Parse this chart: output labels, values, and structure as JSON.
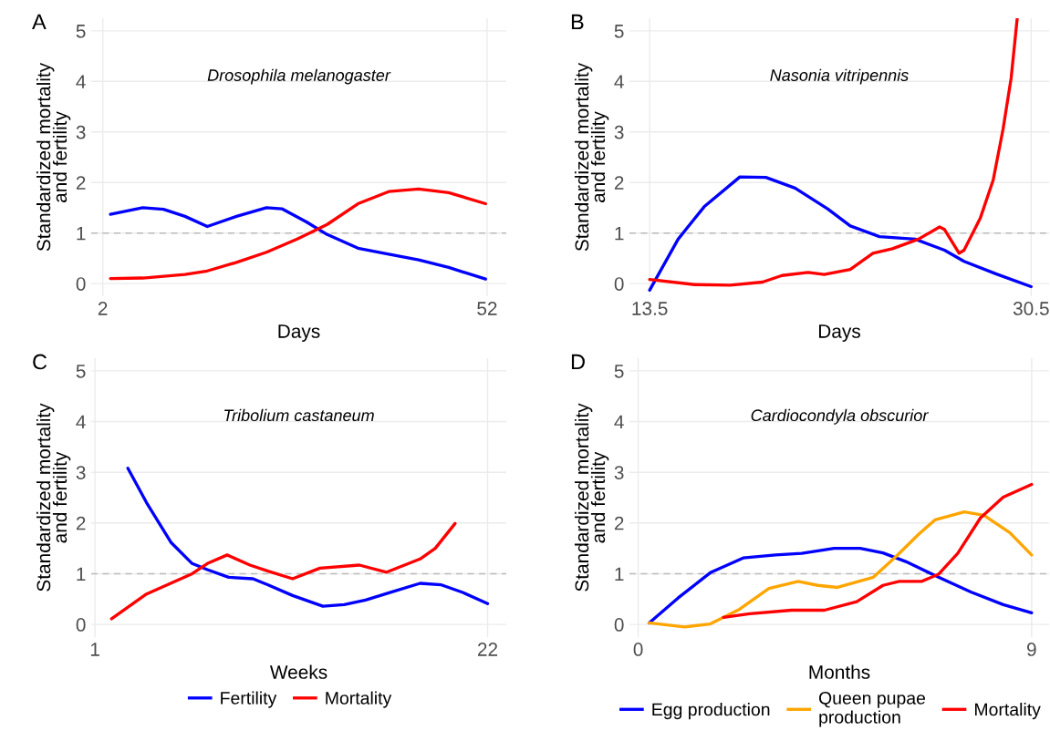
{
  "chart_data": [
    {
      "type": "line",
      "title": "A",
      "subtitle": "Drosophila melanogaster",
      "xlabel": "Days",
      "ylabel": "Standardized mortality\nand fertility",
      "xlim": [
        0.5,
        54.5
      ],
      "xticks": [
        2,
        52
      ],
      "ylim": [
        -0.25,
        5.25
      ],
      "yticks": [
        0,
        1,
        2,
        3,
        4,
        5
      ],
      "grid": true,
      "legend": false,
      "ref_lines": [
        {
          "axis": "y",
          "value": 1,
          "color": "#bbbbbb",
          "line_style": "dashed"
        }
      ],
      "series": [
        {
          "color": "#0000ff",
          "x": [
            3.0,
            7.2,
            9.9,
            12.7,
            15.6,
            19.4,
            23.3,
            25.3,
            28.5,
            31.2,
            35.2,
            39.2,
            43.1,
            47,
            51.8
          ],
          "values": [
            1.37,
            1.5,
            1.47,
            1.33,
            1.13,
            1.33,
            1.5,
            1.48,
            1.22,
            0.97,
            0.7,
            0.58,
            0.47,
            0.32,
            0.09
          ]
        },
        {
          "color": "#ff0000",
          "x": [
            3.0,
            7.2,
            12.7,
            15.6,
            19.4,
            23.3,
            27.3,
            31.2,
            35.2,
            39.2,
            43.1,
            47,
            51.8
          ],
          "values": [
            0.1,
            0.11,
            0.18,
            0.25,
            0.42,
            0.62,
            0.88,
            1.17,
            1.58,
            1.82,
            1.87,
            1.8,
            1.58
          ]
        }
      ]
    },
    {
      "type": "line",
      "title": "B",
      "subtitle": "Nasonia vitripennis",
      "xlabel": "Days",
      "ylabel": "Standardized mortality\nand fertility",
      "xlim": [
        12.6,
        31.3
      ],
      "xticks": [
        13.5,
        30.5
      ],
      "ylim": [
        -0.25,
        5.25
      ],
      "yticks": [
        0,
        1,
        2,
        3,
        4,
        5
      ],
      "grid": true,
      "legend": false,
      "ref_lines": [
        {
          "axis": "y",
          "value": 1,
          "color": "#bbbbbb",
          "line_style": "dashed"
        }
      ],
      "series": [
        {
          "color": "#0000ff",
          "x": [
            13.5,
            14.77,
            15.93,
            17.52,
            18.68,
            19.98,
            21.43,
            22.44,
            23.74,
            25.33,
            26.64,
            27.51,
            28.95,
            30.5
          ],
          "values": [
            -0.13,
            0.88,
            1.52,
            2.11,
            2.1,
            1.89,
            1.48,
            1.14,
            0.93,
            0.88,
            0.66,
            0.44,
            0.19,
            -0.06
          ]
        },
        {
          "color": "#ff0000",
          "x": [
            13.5,
            15.5,
            17.09,
            18.53,
            19.4,
            20.56,
            21.28,
            22.44,
            23.45,
            24.32,
            25.48,
            26.42,
            26.64,
            27.29,
            27.51,
            28.23,
            28.81,
            29.25,
            29.61,
            29.88
          ],
          "values": [
            0.08,
            -0.02,
            -0.03,
            0.03,
            0.16,
            0.22,
            0.18,
            0.28,
            0.6,
            0.69,
            0.88,
            1.12,
            1.07,
            0.6,
            0.66,
            1.29,
            2.05,
            3.06,
            4.07,
            5.25
          ]
        }
      ]
    },
    {
      "type": "line",
      "title": "C",
      "subtitle": "Tribolium castaneum",
      "xlabel": "Weeks",
      "ylabel": "Standardized mortality\nand fertility",
      "xlim": [
        0.8,
        23.0
      ],
      "xticks": [
        1,
        22
      ],
      "ylim": [
        -0.25,
        5.25
      ],
      "yticks": [
        0,
        1,
        2,
        3,
        4,
        5
      ],
      "grid": true,
      "legend": "bottom",
      "ref_lines": [
        {
          "axis": "y",
          "value": 1,
          "color": "#bbbbbb",
          "line_style": "dashed"
        }
      ],
      "series": [
        {
          "name": "Fertility",
          "color": "#0000ff",
          "x": [
            2.76,
            3.76,
            5.06,
            6.2,
            7.01,
            8.15,
            9.45,
            10.26,
            11.57,
            13.19,
            14.33,
            15.47,
            16.77,
            18.39,
            19.53,
            20.67,
            22
          ],
          "values": [
            3.08,
            2.4,
            1.62,
            1.2,
            1.08,
            0.93,
            0.9,
            0.78,
            0.57,
            0.36,
            0.39,
            0.48,
            0.63,
            0.81,
            0.78,
            0.63,
            0.41
          ]
        },
        {
          "name": "Mortality",
          "color": "#ff0000",
          "x": [
            1.89,
            3.76,
            6.2,
            7.01,
            8.07,
            9.29,
            10.26,
            11.57,
            13.03,
            15.14,
            16.6,
            18.39,
            19.2,
            20.26
          ],
          "values": [
            0.11,
            0.6,
            1.0,
            1.2,
            1.37,
            1.17,
            1.05,
            0.9,
            1.11,
            1.17,
            1.03,
            1.29,
            1.5,
            1.99
          ]
        }
      ]
    },
    {
      "type": "line",
      "title": "D",
      "subtitle": "Cardiocondyla obscurior",
      "xlabel": "Months",
      "ylabel": "Standardized mortality\nand fertility",
      "xlim": [
        -0.2,
        9.4
      ],
      "xticks": [
        0,
        9
      ],
      "ylim": [
        -0.25,
        5.25
      ],
      "yticks": [
        0,
        1,
        2,
        3,
        4,
        5
      ],
      "grid": true,
      "legend": "bottom",
      "ref_lines": [
        {
          "axis": "y",
          "value": 1,
          "color": "#bbbbbb",
          "line_style": "dashed"
        }
      ],
      "series": [
        {
          "name": "Egg production",
          "color": "#0000ff",
          "x": [
            0.25,
            0.91,
            1.65,
            2.4,
            3.14,
            3.74,
            4.48,
            5.08,
            5.6,
            6.12,
            6.87,
            7.61,
            8.35,
            9
          ],
          "values": [
            0.03,
            0.52,
            1.02,
            1.31,
            1.37,
            1.4,
            1.5,
            1.5,
            1.41,
            1.24,
            0.93,
            0.64,
            0.39,
            0.23
          ]
        },
        {
          "name": "Queen pupae\nproduction",
          "color": "#ffa500",
          "x": [
            0.25,
            1.06,
            1.65,
            2.32,
            2.99,
            3.66,
            4.11,
            4.56,
            5.38,
            5.9,
            6.42,
            6.79,
            7.46,
            7.91,
            8.5,
            9
          ],
          "values": [
            0.03,
            -0.05,
            0.01,
            0.3,
            0.71,
            0.85,
            0.77,
            0.73,
            0.93,
            1.34,
            1.78,
            2.06,
            2.22,
            2.15,
            1.81,
            1.37
          ]
        },
        {
          "name": "Mortality",
          "color": "#ff0000",
          "x": [
            1.95,
            2.55,
            3.51,
            4.26,
            5.0,
            5.6,
            5.97,
            6.49,
            6.87,
            7.31,
            7.83,
            8.35,
            9
          ],
          "values": [
            0.14,
            0.21,
            0.28,
            0.28,
            0.45,
            0.77,
            0.85,
            0.85,
            0.99,
            1.4,
            2.1,
            2.51,
            2.76
          ]
        }
      ]
    }
  ]
}
